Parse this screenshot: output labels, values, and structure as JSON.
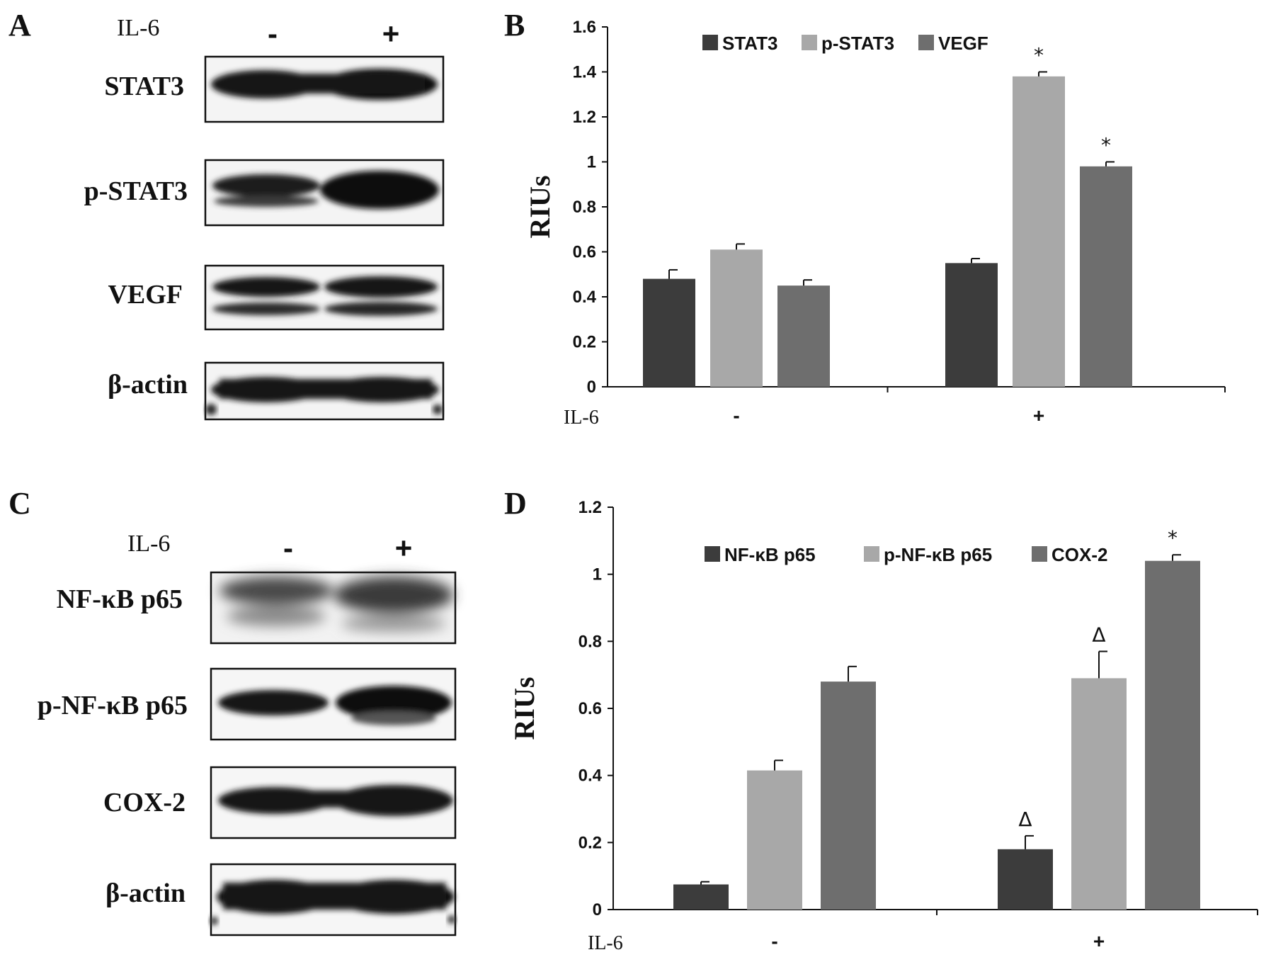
{
  "panels": {
    "A": {
      "letter": "A",
      "il6_label": "IL-6",
      "lanes": [
        "-",
        "+"
      ],
      "blots": [
        {
          "label": "STAT3",
          "bands": "single"
        },
        {
          "label": "p-STAT3",
          "bands": "double"
        },
        {
          "label": "VEGF",
          "bands": "double"
        },
        {
          "label": "β-actin",
          "bands": "single"
        }
      ]
    },
    "C": {
      "letter": "C",
      "il6_label": "IL-6",
      "lanes": [
        "-",
        "+"
      ],
      "blots": [
        {
          "label": "NF-κB p65",
          "bands": "diffuse"
        },
        {
          "label": "p-NF-κB p65",
          "bands": "single"
        },
        {
          "label": "COX-2",
          "bands": "single"
        },
        {
          "label": "β-actin",
          "bands": "single"
        }
      ]
    },
    "B": {
      "letter": "B"
    },
    "D": {
      "letter": "D"
    }
  },
  "chart_data": [
    {
      "panel": "B",
      "type": "bar",
      "ylabel": "RIUs",
      "x_prefix": "IL-6",
      "categories": [
        "-",
        "+"
      ],
      "ylim": [
        0,
        1.6
      ],
      "yticks": [
        "0",
        "0.2",
        "0.4",
        "0.6",
        "0.8",
        "1",
        "1.2",
        "1.4",
        "1.6"
      ],
      "legend_position": "top",
      "series": [
        {
          "name": "STAT3",
          "color": "#3c3c3c",
          "values": [
            0.48,
            0.55
          ],
          "errors": [
            0.04,
            0.02
          ],
          "markers": [
            "",
            ""
          ]
        },
        {
          "name": "p-STAT3",
          "color": "#a8a8a8",
          "values": [
            0.61,
            1.38
          ],
          "errors": [
            0.025,
            0.02
          ],
          "markers": [
            "",
            "*"
          ]
        },
        {
          "name": "VEGF",
          "color": "#6e6e6e",
          "values": [
            0.45,
            0.98
          ],
          "errors": [
            0.025,
            0.02
          ],
          "markers": [
            "",
            "*"
          ]
        }
      ]
    },
    {
      "panel": "D",
      "type": "bar",
      "ylabel": "RIUs",
      "x_prefix": "IL-6",
      "categories": [
        "-",
        "+"
      ],
      "ylim": [
        0,
        1.2
      ],
      "yticks": [
        "0",
        "0.2",
        "0.4",
        "0.6",
        "0.8",
        "1",
        "1.2"
      ],
      "legend_position": "top",
      "series": [
        {
          "name": "NF-κB p65",
          "color": "#3c3c3c",
          "values": [
            0.075,
            0.18
          ],
          "errors": [
            0.008,
            0.04
          ],
          "markers": [
            "",
            "Δ"
          ]
        },
        {
          "name": "p-NF-κB p65",
          "color": "#a8a8a8",
          "values": [
            0.415,
            0.69
          ],
          "errors": [
            0.03,
            0.08
          ],
          "markers": [
            "",
            "Δ"
          ]
        },
        {
          "name": "COX-2",
          "color": "#6e6e6e",
          "values": [
            0.68,
            1.04
          ],
          "errors": [
            0.045,
            0.018
          ],
          "markers": [
            "",
            "*"
          ]
        }
      ]
    }
  ]
}
